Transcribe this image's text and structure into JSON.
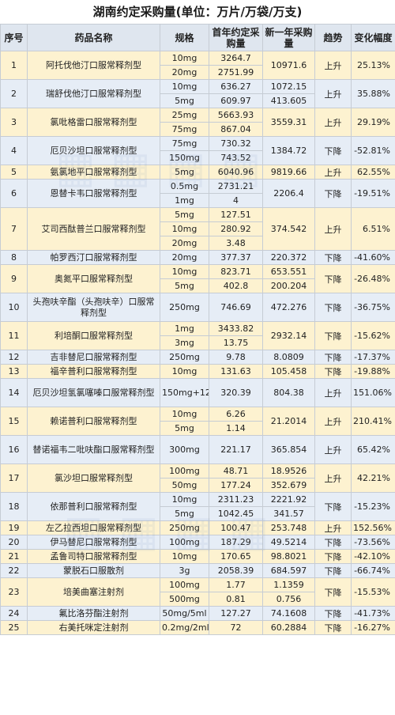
{
  "title": "湖南约定采购量(单位：万片/万袋/万支)",
  "headers": {
    "no": "序号",
    "name": "药品名称",
    "spec": "规格",
    "first": "首年约定采购量",
    "next": "新一年采购量",
    "trend": "趋势",
    "change": "变化幅度"
  },
  "rows": [
    {
      "no": "1",
      "name": "阿托伐他汀口服常释剂型",
      "specs": [
        "10mg",
        "20mg"
      ],
      "first": [
        "3264.7",
        "2751.99"
      ],
      "next": "10971.6",
      "trend": "上升",
      "change": "25.13%"
    },
    {
      "no": "2",
      "name": "瑞舒伐他汀口服常释剂型",
      "specs": [
        "10mg",
        "5mg"
      ],
      "first": [
        "636.27",
        "609.97"
      ],
      "next": [
        "1072.15",
        "413.605"
      ],
      "trend": "上升",
      "change": "35.88%"
    },
    {
      "no": "3",
      "name": "氯吡格雷口服常释剂型",
      "specs": [
        "25mg",
        "75mg"
      ],
      "first": [
        "5663.93",
        "867.04"
      ],
      "next": "3559.31",
      "trend": "上升",
      "change": "29.19%"
    },
    {
      "no": "4",
      "name": "厄贝沙坦口服常释剂型",
      "specs": [
        "75mg",
        "150mg"
      ],
      "first": [
        "730.32",
        "743.52"
      ],
      "next": "1384.72",
      "trend": "下降",
      "change": "-52.81%"
    },
    {
      "no": "5",
      "name": "氨氯地平口服常释剂型",
      "specs": [
        "5mg"
      ],
      "first": [
        "6040.96"
      ],
      "next": "9819.66",
      "trend": "上升",
      "change": "62.55%"
    },
    {
      "no": "6",
      "name": "恩替卡韦口服常释剂型",
      "specs": [
        "0.5mg",
        "1mg"
      ],
      "first": [
        "2731.21",
        "4"
      ],
      "next": "2206.4",
      "trend": "下降",
      "change": "-19.51%"
    },
    {
      "no": "7",
      "name": "艾司西酞普兰口服常释剂型",
      "specs": [
        "5mg",
        "10mg",
        "20mg"
      ],
      "first": [
        "127.51",
        "280.92",
        "3.48"
      ],
      "next": "374.542",
      "trend": "上升",
      "change": "6.51%"
    },
    {
      "no": "8",
      "name": "帕罗西汀口服常释剂型",
      "specs": [
        "20mg"
      ],
      "first": [
        "377.37"
      ],
      "next": "220.372",
      "trend": "下降",
      "change": "-41.60%"
    },
    {
      "no": "9",
      "name": "奥氮平口服常释剂型",
      "specs": [
        "10mg",
        "5mg"
      ],
      "first": [
        "823.71",
        "402.8"
      ],
      "next": [
        "653.551",
        "200.204"
      ],
      "trend": "下降",
      "change": "-26.48%"
    },
    {
      "no": "10",
      "name": "头孢呋辛酯（头孢呋辛）口服常释剂型",
      "specs": [
        "250mg"
      ],
      "first": [
        "746.69"
      ],
      "next": "472.276",
      "trend": "下降",
      "change": "-36.75%"
    },
    {
      "no": "11",
      "name": "利培酮口服常释剂型",
      "specs": [
        "1mg",
        "3mg"
      ],
      "first": [
        "3433.82",
        "13.75"
      ],
      "next": "2932.14",
      "trend": "下降",
      "change": "-15.62%"
    },
    {
      "no": "12",
      "name": "吉非替尼口服常释剂型",
      "specs": [
        "250mg"
      ],
      "first": [
        "9.78"
      ],
      "next": "8.0809",
      "trend": "下降",
      "change": "-17.37%"
    },
    {
      "no": "13",
      "name": "福辛普利口服常释剂型",
      "specs": [
        "10mg"
      ],
      "first": [
        "131.63"
      ],
      "next": "105.458",
      "trend": "下降",
      "change": "-19.88%"
    },
    {
      "no": "14",
      "name": "厄贝沙坦氢氯噻嗪口服常释剂型",
      "specs": [
        "150mg+12.5mg"
      ],
      "first": [
        "320.39"
      ],
      "next": "804.38",
      "trend": "上升",
      "change": "151.06%"
    },
    {
      "no": "15",
      "name": "赖诺普利口服常释剂型",
      "specs": [
        "10mg",
        "5mg"
      ],
      "first": [
        "6.26",
        "1.14"
      ],
      "next": "21.2014",
      "trend": "上升",
      "change": "210.41%"
    },
    {
      "no": "16",
      "name": "替诺福韦二吡呋酯口服常释剂型",
      "specs": [
        "300mg"
      ],
      "first": [
        "221.17"
      ],
      "next": "365.854",
      "trend": "上升",
      "change": "65.42%"
    },
    {
      "no": "17",
      "name": "氯沙坦口服常释剂型",
      "specs": [
        "100mg",
        "50mg"
      ],
      "first": [
        "48.71",
        "177.24"
      ],
      "next": [
        "18.9526",
        "352.679"
      ],
      "trend": "上升",
      "change": "42.21%"
    },
    {
      "no": "18",
      "name": "依那普利口服常释剂型",
      "specs": [
        "10mg",
        "5mg"
      ],
      "first": [
        "2311.23",
        "1042.45"
      ],
      "next": [
        "2221.92",
        "341.57"
      ],
      "trend": "下降",
      "change": "-15.23%"
    },
    {
      "no": "19",
      "name": "左乙拉西坦口服常释剂型",
      "specs": [
        "250mg"
      ],
      "first": [
        "100.47"
      ],
      "next": "253.748",
      "trend": "上升",
      "change": "152.56%"
    },
    {
      "no": "20",
      "name": "伊马替尼口服常释剂型",
      "specs": [
        "100mg"
      ],
      "first": [
        "187.29"
      ],
      "next": "49.5214",
      "trend": "下降",
      "change": "-73.56%"
    },
    {
      "no": "21",
      "name": "孟鲁司特口服常释剂型",
      "specs": [
        "10mg"
      ],
      "first": [
        "170.65"
      ],
      "next": "98.8021",
      "trend": "下降",
      "change": "-42.10%"
    },
    {
      "no": "22",
      "name": "蒙脱石口服散剂",
      "specs": [
        "3g"
      ],
      "first": [
        "2058.39"
      ],
      "next": "684.597",
      "trend": "下降",
      "change": "-66.74%"
    },
    {
      "no": "23",
      "name": "培美曲塞注射剂",
      "specs": [
        "100mg",
        "500mg"
      ],
      "first": [
        "1.77",
        "0.81"
      ],
      "next": [
        "1.1359",
        "0.756"
      ],
      "trend": "下降",
      "change": "-15.53%"
    },
    {
      "no": "24",
      "name": "氟比洛芬酯注射剂",
      "specs": [
        "50mg/5ml"
      ],
      "first": [
        "127.27"
      ],
      "next": "74.1608",
      "trend": "下降",
      "change": "-41.73%"
    },
    {
      "no": "25",
      "name": "右美托咪定注射剂",
      "specs": [
        "0.2mg/2ml"
      ],
      "first": [
        "72"
      ],
      "next": "60.2884",
      "trend": "下降",
      "change": "-16.27%"
    }
  ]
}
